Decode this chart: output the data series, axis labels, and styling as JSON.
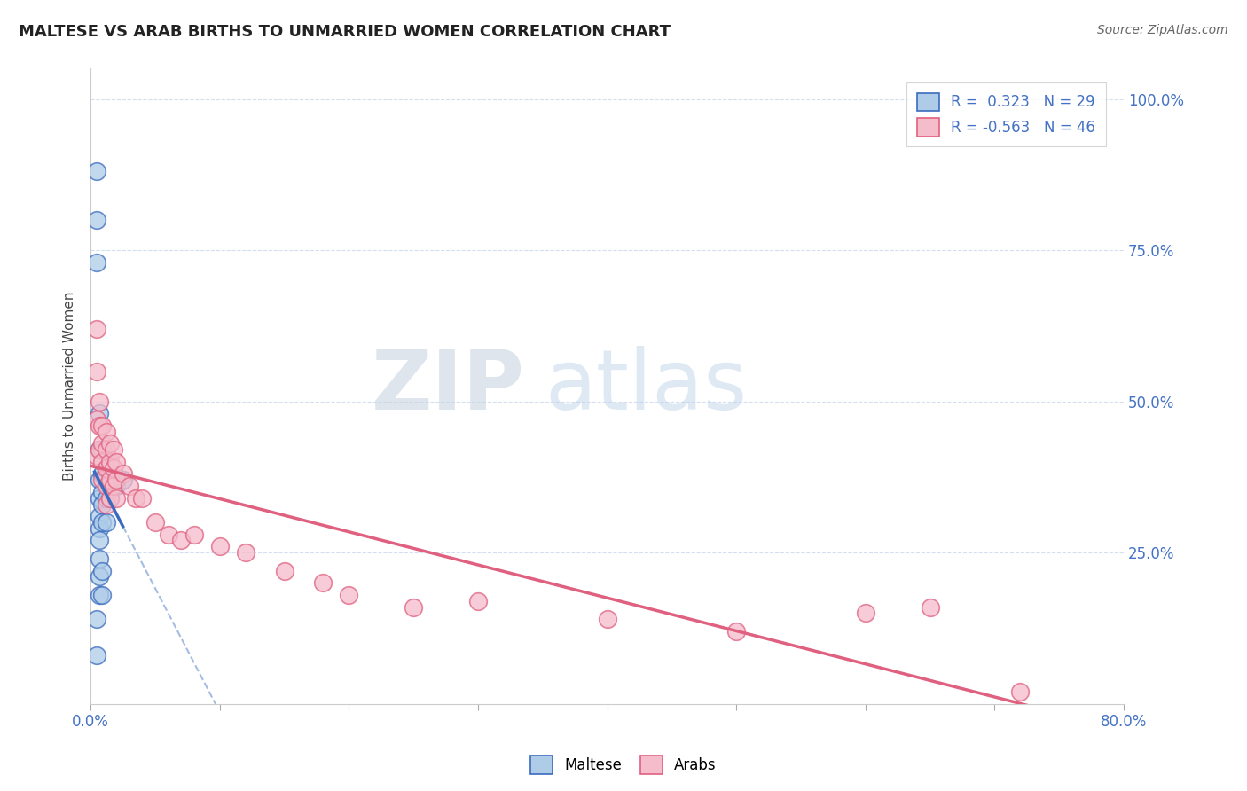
{
  "title": "MALTESE VS ARAB BIRTHS TO UNMARRIED WOMEN CORRELATION CHART",
  "source": "Source: ZipAtlas.com",
  "ylabel": "Births to Unmarried Women",
  "yticks_right": [
    "25.0%",
    "50.0%",
    "75.0%",
    "100.0%"
  ],
  "yticks_right_vals": [
    0.25,
    0.5,
    0.75,
    1.0
  ],
  "xlim": [
    0.0,
    0.8
  ],
  "ylim": [
    0.0,
    1.05
  ],
  "legend_r_maltese": "0.323",
  "legend_n_maltese": "29",
  "legend_r_arab": "-0.563",
  "legend_n_arab": "46",
  "maltese_color": "#aecce8",
  "arab_color": "#f5bccb",
  "trend_maltese_color": "#3a6bbf",
  "trend_arab_color": "#e06080",
  "background_color": "#ffffff",
  "watermark_zip": "ZIP",
  "watermark_atlas": "atlas",
  "maltese_x": [
    0.005,
    0.005,
    0.005,
    0.005,
    0.005,
    0.007,
    0.007,
    0.007,
    0.007,
    0.007,
    0.007,
    0.007,
    0.007,
    0.007,
    0.007,
    0.009,
    0.009,
    0.009,
    0.009,
    0.009,
    0.009,
    0.009,
    0.012,
    0.012,
    0.012,
    0.015,
    0.015,
    0.02,
    0.025
  ],
  "maltese_y": [
    0.88,
    0.8,
    0.73,
    0.14,
    0.08,
    0.48,
    0.42,
    0.37,
    0.34,
    0.31,
    0.29,
    0.27,
    0.24,
    0.21,
    0.18,
    0.42,
    0.38,
    0.35,
    0.33,
    0.3,
    0.22,
    0.18,
    0.37,
    0.34,
    0.3,
    0.37,
    0.34,
    0.36,
    0.37
  ],
  "arab_x": [
    0.005,
    0.005,
    0.005,
    0.005,
    0.007,
    0.007,
    0.007,
    0.009,
    0.009,
    0.009,
    0.009,
    0.012,
    0.012,
    0.012,
    0.012,
    0.012,
    0.015,
    0.015,
    0.015,
    0.015,
    0.018,
    0.018,
    0.018,
    0.02,
    0.02,
    0.02,
    0.025,
    0.03,
    0.035,
    0.04,
    0.05,
    0.06,
    0.07,
    0.08,
    0.1,
    0.12,
    0.15,
    0.18,
    0.2,
    0.25,
    0.3,
    0.4,
    0.5,
    0.6,
    0.65,
    0.72
  ],
  "arab_y": [
    0.62,
    0.55,
    0.47,
    0.41,
    0.5,
    0.46,
    0.42,
    0.46,
    0.43,
    0.4,
    0.37,
    0.45,
    0.42,
    0.39,
    0.36,
    0.33,
    0.43,
    0.4,
    0.37,
    0.34,
    0.42,
    0.39,
    0.36,
    0.4,
    0.37,
    0.34,
    0.38,
    0.36,
    0.34,
    0.34,
    0.3,
    0.28,
    0.27,
    0.28,
    0.26,
    0.25,
    0.22,
    0.2,
    0.18,
    0.16,
    0.17,
    0.14,
    0.12,
    0.15,
    0.16,
    0.02
  ],
  "maltese_trend_x0": 0.0,
  "maltese_trend_x1": 0.025,
  "arab_trend_x0": 0.0,
  "arab_trend_x1": 0.8
}
